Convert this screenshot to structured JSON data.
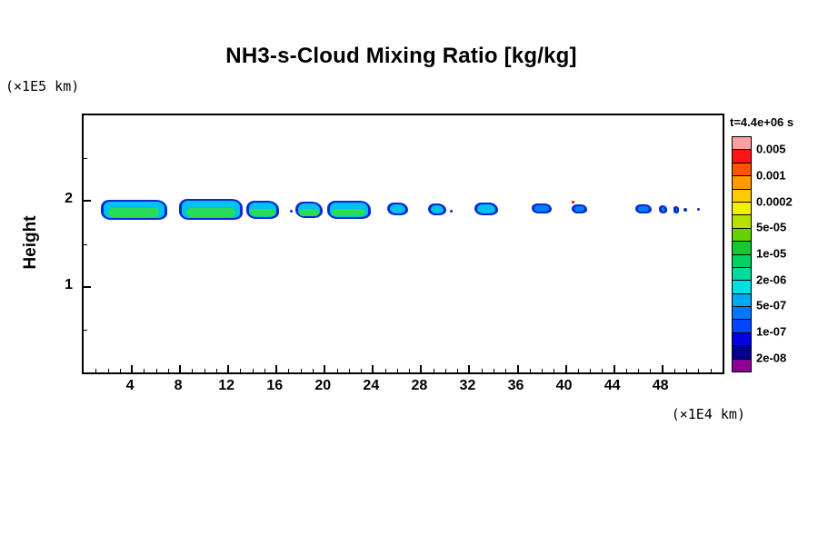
{
  "chart_data": {
    "type": "heatmap",
    "title": "NH3-s-Cloud Mixing Ratio [kg/kg]",
    "ylabel": "Height",
    "y_axis_unit": "(×1E5 km)",
    "x_axis_unit": "(×1E4 km)",
    "time_label": "t=4.4e+06 s",
    "xlim": [
      0,
      53
    ],
    "ylim": [
      0,
      3
    ],
    "x_ticks": [
      4,
      8,
      12,
      16,
      20,
      24,
      28,
      32,
      36,
      40,
      44,
      48
    ],
    "x_minor_step": 1,
    "y_ticks": [
      1,
      2
    ],
    "y_minor_step": 0.5,
    "grid": false,
    "colorbar": {
      "position": "right",
      "level_labels": [
        "0.005",
        "0.001",
        "0.0002",
        "5e-05",
        "1e-05",
        "2e-06",
        "5e-07",
        "1e-07",
        "2e-08"
      ],
      "segment_colors": [
        "#ffa0a0",
        "#fa1414",
        "#ff5500",
        "#ff9900",
        "#ffcc00",
        "#f0f000",
        "#b4e100",
        "#64d200",
        "#14c832",
        "#00d264",
        "#00dc9e",
        "#00e0e0",
        "#00aaf0",
        "#0078ff",
        "#0046ff",
        "#0000e1",
        "#000091",
        "#8c0096"
      ]
    },
    "cloud_layer": {
      "height_range": [
        1.78,
        2.02
      ],
      "segments": [
        {
          "x0": 1.4,
          "x1": 6.9,
          "y0": 1.78,
          "y1": 2.01,
          "core": "green"
        },
        {
          "x0": 7.9,
          "x1": 13.2,
          "y0": 1.78,
          "y1": 2.02,
          "core": "green"
        },
        {
          "x0": 13.5,
          "x1": 16.2,
          "y0": 1.79,
          "y1": 2.0,
          "core": "green"
        },
        {
          "x0": 17.6,
          "x1": 19.8,
          "y0": 1.8,
          "y1": 1.99,
          "core": "green"
        },
        {
          "x0": 20.2,
          "x1": 23.8,
          "y0": 1.79,
          "y1": 2.0,
          "core": "green"
        },
        {
          "x0": 25.2,
          "x1": 26.9,
          "y0": 1.83,
          "y1": 1.98,
          "core": "cyan"
        },
        {
          "x0": 28.6,
          "x1": 30.1,
          "y0": 1.83,
          "y1": 1.97,
          "core": "cyan"
        },
        {
          "x0": 32.4,
          "x1": 34.4,
          "y0": 1.83,
          "y1": 1.98,
          "core": "cyan"
        },
        {
          "x0": 37.2,
          "x1": 38.8,
          "y0": 1.85,
          "y1": 1.97,
          "core": "blue"
        },
        {
          "x0": 40.5,
          "x1": 41.8,
          "y0": 1.85,
          "y1": 1.96,
          "core": "blue"
        },
        {
          "x0": 45.8,
          "x1": 47.1,
          "y0": 1.85,
          "y1": 1.96,
          "core": "blue"
        },
        {
          "x0": 47.7,
          "x1": 48.4,
          "y0": 1.86,
          "y1": 1.95,
          "core": "blue"
        },
        {
          "x0": 48.9,
          "x1": 49.4,
          "y0": 1.86,
          "y1": 1.94,
          "core": "blue"
        }
      ],
      "dots": [
        {
          "x": 40.6,
          "y": 1.99,
          "color": "#d20000",
          "size": 3
        },
        {
          "x": 30.5,
          "y": 1.88,
          "color": "#0032c8",
          "size": 3
        },
        {
          "x": 17.2,
          "y": 1.88,
          "color": "#0032c8",
          "size": 3
        },
        {
          "x": 49.9,
          "y": 1.9,
          "color": "#0032c8",
          "size": 4
        },
        {
          "x": 51.0,
          "y": 1.9,
          "color": "#0032c8",
          "size": 3
        }
      ]
    }
  }
}
